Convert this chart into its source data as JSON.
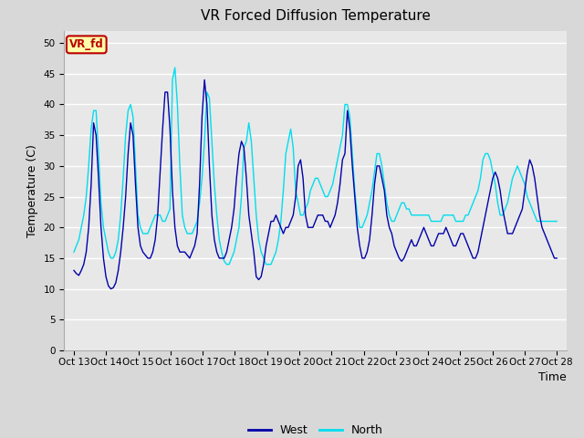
{
  "title": "VR Forced Diffusion Temperature",
  "xlabel": "Time",
  "ylabel": "Temperature (C)",
  "ylim": [
    0,
    52
  ],
  "yticks": [
    0,
    5,
    10,
    15,
    20,
    25,
    30,
    35,
    40,
    45,
    50
  ],
  "x_labels": [
    "Oct 13",
    "Oct 14",
    "Oct 15",
    "Oct 16",
    "Oct 17",
    "Oct 18",
    "Oct 19",
    "Oct 20",
    "Oct 21",
    "Oct 22",
    "Oct 23",
    "Oct 24",
    "Oct 25",
    "Oct 26",
    "Oct 27",
    "Oct 28"
  ],
  "bg_color": "#d8d8d8",
  "plot_bg_color": "#e8e8e8",
  "grid_color": "#ffffff",
  "west_color": "#0000aa",
  "north_color": "#00ddee",
  "annotation_text": "VR_fd",
  "annotation_bg": "#ffffaa",
  "annotation_border": "#bb0000",
  "west_data": [
    13,
    12.5,
    12.2,
    13,
    14,
    16,
    20,
    27,
    37,
    35,
    28,
    20,
    15,
    12,
    10.5,
    10,
    10.2,
    11,
    13,
    16,
    20,
    25,
    32,
    37,
    35,
    27,
    20,
    17,
    16,
    15.5,
    15,
    15,
    16,
    18,
    22,
    29,
    36,
    42,
    42,
    36,
    26,
    20,
    17,
    16,
    16,
    16,
    15.5,
    15,
    16,
    17,
    19,
    27,
    38,
    44,
    40,
    30,
    22,
    18,
    16,
    15,
    15,
    15,
    16,
    18,
    20,
    23,
    28,
    32,
    34,
    33,
    28,
    22,
    19,
    16,
    12,
    11.5,
    12,
    14,
    17,
    19,
    21,
    21,
    22,
    21,
    20,
    19,
    20,
    20,
    21,
    22,
    25,
    30,
    31,
    28,
    22,
    20,
    20,
    20,
    21,
    22,
    22,
    22,
    21,
    21,
    20,
    21,
    22,
    24,
    27,
    31,
    32,
    39,
    36,
    30,
    25,
    20,
    17,
    15,
    15,
    16,
    18,
    22,
    27,
    30,
    30,
    28,
    26,
    22,
    20,
    19,
    17,
    16,
    15,
    14.5,
    15,
    16,
    17,
    18,
    17,
    17,
    18,
    19,
    20,
    19,
    18,
    17,
    17,
    18,
    19,
    19,
    19,
    20,
    19,
    18,
    17,
    17,
    18,
    19,
    19,
    18,
    17,
    16,
    15,
    15,
    16,
    18,
    20,
    22,
    24,
    26,
    28,
    29,
    28,
    26,
    23,
    21,
    19,
    19,
    19,
    20,
    21,
    22,
    23,
    26,
    29,
    31,
    30,
    28,
    25,
    22,
    20,
    19,
    18,
    17,
    16,
    15,
    15
  ],
  "north_data": [
    16,
    17,
    18,
    20,
    22,
    25,
    30,
    36,
    39,
    39,
    32,
    24,
    20,
    18,
    16,
    15,
    15,
    16,
    18,
    22,
    28,
    35,
    39,
    40,
    38,
    30,
    22,
    20,
    19,
    19,
    19,
    20,
    21,
    22,
    22,
    22,
    21,
    21,
    22,
    23,
    44,
    46,
    40,
    30,
    22,
    20,
    19,
    19,
    19,
    20,
    21,
    24,
    28,
    34,
    42,
    41,
    34,
    27,
    22,
    18,
    16,
    14.5,
    14,
    14,
    15,
    16,
    18,
    20,
    25,
    33,
    34,
    37,
    34,
    28,
    22,
    18,
    16,
    15,
    14,
    14,
    14,
    15,
    16,
    18,
    21,
    26,
    32,
    34,
    36,
    33,
    26,
    24,
    22,
    22,
    23,
    24,
    26,
    27,
    28,
    28,
    27,
    26,
    25,
    25,
    26,
    27,
    29,
    31,
    33,
    35,
    40,
    40,
    38,
    32,
    26,
    22,
    20,
    20,
    21,
    22,
    24,
    26,
    29,
    32,
    32,
    30,
    27,
    24,
    22,
    21,
    21,
    22,
    23,
    24,
    24,
    23,
    23,
    22,
    22,
    22,
    22,
    22,
    22,
    22,
    22,
    21,
    21,
    21,
    21,
    21,
    22,
    22,
    22,
    22,
    22,
    21,
    21,
    21,
    21,
    22,
    22,
    23,
    24,
    25,
    26,
    28,
    31,
    32,
    32,
    31,
    29,
    27,
    24,
    22,
    22,
    23,
    24,
    26,
    28,
    29,
    30,
    29,
    28,
    27,
    25,
    24,
    23,
    22,
    21,
    21,
    21,
    21,
    21,
    21,
    21,
    21,
    21
  ]
}
